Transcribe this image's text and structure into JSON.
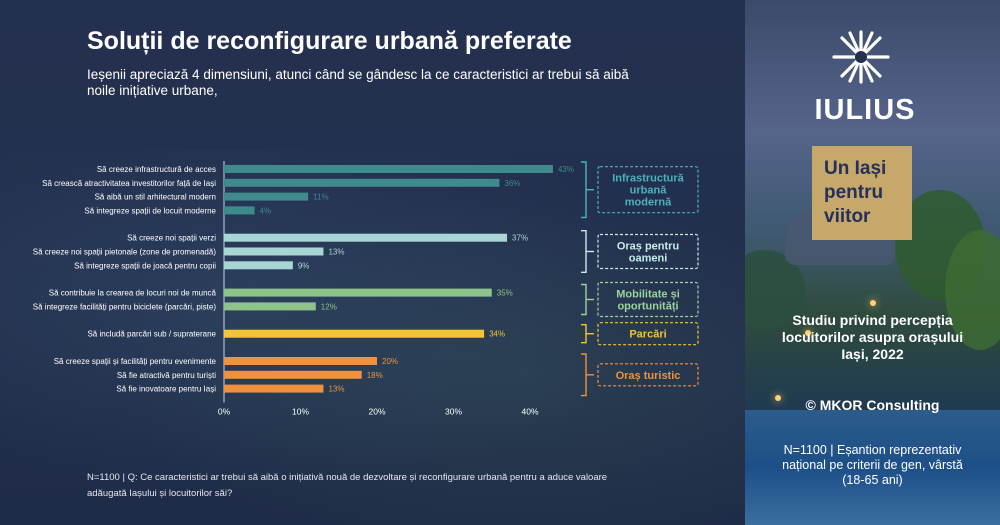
{
  "header": {
    "title": "Soluții de reconfigurare urbană preferate",
    "subtitle": "Ieșenii apreciază 4 dimensiuni, atunci când se gândesc la ce caracteristici ar trebui să aibă noile inițiative urbane,"
  },
  "footnote": "N=1100 | Q: Ce caracteristici ar trebui să aibă o inițiativă nouă de dezvoltare și reconfigurare urbană pentru a aduce valoare adăugată Iașului și locuitorilor săi?",
  "brand": {
    "logo_text": "IULIUS",
    "logo_icon": "starburst-icon",
    "badge_lines": [
      "Un Iași",
      "pentru",
      "viitor"
    ],
    "badge_color": "#c6a86a",
    "badge_text_color": "#26305a"
  },
  "study": {
    "title": "Studiu privind percepția locuitorilor asupra orașului Iași, 2022",
    "copyright": "© MKOR Consulting",
    "sample": "N=1100 | Eșantion reprezentativ național pe criterii de gen, vârstă (18-65 ani)"
  },
  "chart_data": {
    "type": "bar",
    "orientation": "horizontal",
    "xlim": [
      0,
      45
    ],
    "x_ticks": [
      {
        "value": 0,
        "label": "0%"
      },
      {
        "value": 10,
        "label": "10%"
      },
      {
        "value": 20,
        "label": "20%"
      },
      {
        "value": 30,
        "label": "30%"
      },
      {
        "value": 40,
        "label": "40%"
      }
    ],
    "groups": [
      {
        "name": "Infrastructură urbană modernă",
        "name_lines": [
          "Infrastructură",
          "urbană",
          "modernă"
        ],
        "color": "#3f8a8c",
        "label_color": "#4bb3bd",
        "items": [
          {
            "label": "Să creeze infrastructură de acces",
            "value": 43,
            "value_label": "43%"
          },
          {
            "label": "Să crească atractivitatea investitorilor față de Iași",
            "value": 36,
            "value_label": "36%"
          },
          {
            "label": "Să aibă un stil arhitectural modern",
            "value": 11,
            "value_label": "11%"
          },
          {
            "label": "Să integreze spații de locuit moderne",
            "value": 4,
            "value_label": "4%"
          }
        ]
      },
      {
        "name": "Oraș pentru oameni",
        "name_lines": [
          "Oraș pentru",
          "oameni"
        ],
        "color": "#a8d6d4",
        "label_color": "#c7ecea",
        "items": [
          {
            "label": "Să creeze noi spații verzi",
            "value": 37,
            "value_label": "37%"
          },
          {
            "label": "Să creeze noi spații pietonale (zone de promenadă)",
            "value": 13,
            "value_label": "13%"
          },
          {
            "label": "Să integreze spații de joacă pentru copii",
            "value": 9,
            "value_label": "9%"
          }
        ]
      },
      {
        "name": "Mobilitate și oportunități",
        "name_lines": [
          "Mobilitate și",
          "oportunități"
        ],
        "color": "#8cc48c",
        "label_color": "#9ad49a",
        "items": [
          {
            "label": "Să contribuie la crearea de locuri noi de muncă",
            "value": 35,
            "value_label": "35%"
          },
          {
            "label": "Să integreze facilități pentru biciclete (parcări, piste)",
            "value": 12,
            "value_label": "12%"
          }
        ]
      },
      {
        "name": "Parcări",
        "name_lines": [
          "Parcări"
        ],
        "color": "#f2c531",
        "label_color": "#f2c531",
        "items": [
          {
            "label": "Să includă parcări sub / supraterane",
            "value": 34,
            "value_label": "34%"
          }
        ]
      },
      {
        "name": "Oraș turistic",
        "name_lines": [
          "Oraș turistic"
        ],
        "color": "#f0923d",
        "label_color": "#f0923d",
        "items": [
          {
            "label": "Să creeze spații și facilități pentru evenimente",
            "value": 20,
            "value_label": "20%"
          },
          {
            "label": "Să fie atractivă pentru turiști",
            "value": 18,
            "value_label": "18%"
          },
          {
            "label": "Să fie inovatoare pentru Iași",
            "value": 13,
            "value_label": "13%"
          }
        ]
      }
    ]
  }
}
